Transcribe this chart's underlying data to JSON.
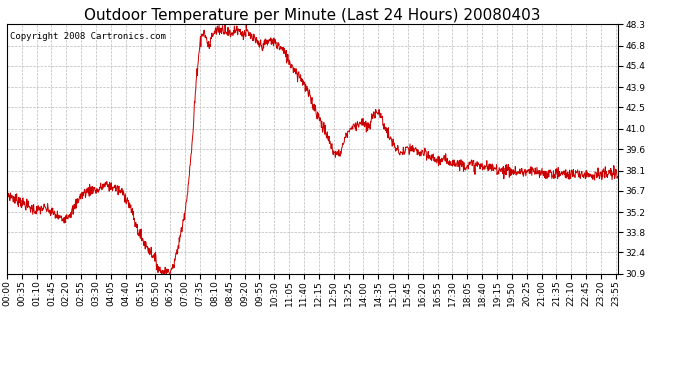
{
  "title": "Outdoor Temperature per Minute (Last 24 Hours) 20080403",
  "copyright_text": "Copyright 2008 Cartronics.com",
  "line_color": "#cc0000",
  "background_color": "#ffffff",
  "grid_color": "#bbbbbb",
  "ylim": [
    30.9,
    48.3
  ],
  "yticks": [
    30.9,
    32.4,
    33.8,
    35.2,
    36.7,
    38.1,
    39.6,
    41.0,
    42.5,
    43.9,
    45.4,
    46.8,
    48.3
  ],
  "title_fontsize": 11,
  "tick_fontsize": 6.5,
  "copyright_fontsize": 6.5,
  "keypoints": [
    [
      0,
      36.5
    ],
    [
      10,
      36.3
    ],
    [
      20,
      36.1
    ],
    [
      30,
      36.0
    ],
    [
      40,
      35.8
    ],
    [
      55,
      35.5
    ],
    [
      70,
      35.3
    ],
    [
      85,
      35.5
    ],
    [
      100,
      35.3
    ],
    [
      115,
      35.0
    ],
    [
      130,
      34.7
    ],
    [
      145,
      35.0
    ],
    [
      155,
      35.3
    ],
    [
      170,
      36.2
    ],
    [
      185,
      36.6
    ],
    [
      200,
      36.8
    ],
    [
      215,
      36.7
    ],
    [
      225,
      37.0
    ],
    [
      235,
      37.1
    ],
    [
      245,
      37.0
    ],
    [
      255,
      36.9
    ],
    [
      265,
      36.7
    ],
    [
      275,
      36.5
    ],
    [
      285,
      36.0
    ],
    [
      295,
      35.2
    ],
    [
      305,
      34.2
    ],
    [
      315,
      33.5
    ],
    [
      325,
      33.0
    ],
    [
      335,
      32.6
    ],
    [
      345,
      32.2
    ],
    [
      355,
      31.5
    ],
    [
      362,
      31.1
    ],
    [
      370,
      31.0
    ],
    [
      378,
      31.0
    ],
    [
      385,
      31.1
    ],
    [
      390,
      31.3
    ],
    [
      398,
      32.0
    ],
    [
      405,
      33.0
    ],
    [
      412,
      34.0
    ],
    [
      418,
      35.0
    ],
    [
      425,
      36.5
    ],
    [
      432,
      38.5
    ],
    [
      438,
      40.5
    ],
    [
      443,
      43.0
    ],
    [
      448,
      45.0
    ],
    [
      453,
      46.5
    ],
    [
      458,
      47.5
    ],
    [
      463,
      47.8
    ],
    [
      468,
      47.5
    ],
    [
      473,
      47.0
    ],
    [
      478,
      46.8
    ],
    [
      483,
      47.5
    ],
    [
      490,
      47.8
    ],
    [
      498,
      48.0
    ],
    [
      505,
      47.9
    ],
    [
      513,
      48.0
    ],
    [
      520,
      47.8
    ],
    [
      528,
      47.5
    ],
    [
      535,
      47.9
    ],
    [
      542,
      48.0
    ],
    [
      550,
      47.8
    ],
    [
      558,
      47.6
    ],
    [
      565,
      47.8
    ],
    [
      572,
      47.5
    ],
    [
      580,
      47.3
    ],
    [
      590,
      47.0
    ],
    [
      600,
      46.8
    ],
    [
      612,
      47.0
    ],
    [
      622,
      47.2
    ],
    [
      632,
      47.0
    ],
    [
      640,
      46.8
    ],
    [
      650,
      46.5
    ],
    [
      660,
      46.0
    ],
    [
      670,
      45.5
    ],
    [
      682,
      45.0
    ],
    [
      695,
      44.5
    ],
    [
      710,
      43.5
    ],
    [
      725,
      42.5
    ],
    [
      740,
      41.5
    ],
    [
      755,
      40.5
    ],
    [
      768,
      39.5
    ],
    [
      778,
      39.2
    ],
    [
      788,
      39.5
    ],
    [
      798,
      40.5
    ],
    [
      808,
      41.0
    ],
    [
      818,
      41.2
    ],
    [
      828,
      41.4
    ],
    [
      836,
      41.5
    ],
    [
      843,
      41.3
    ],
    [
      850,
      41.0
    ],
    [
      858,
      41.5
    ],
    [
      865,
      42.0
    ],
    [
      870,
      42.3
    ],
    [
      875,
      42.2
    ],
    [
      882,
      41.8
    ],
    [
      890,
      41.2
    ],
    [
      900,
      40.5
    ],
    [
      910,
      40.0
    ],
    [
      920,
      39.5
    ],
    [
      930,
      39.3
    ],
    [
      940,
      39.5
    ],
    [
      950,
      39.6
    ],
    [
      960,
      39.5
    ],
    [
      970,
      39.4
    ],
    [
      985,
      39.2
    ],
    [
      1000,
      39.0
    ],
    [
      1020,
      38.8
    ],
    [
      1040,
      38.8
    ],
    [
      1060,
      38.6
    ],
    [
      1080,
      38.5
    ],
    [
      1100,
      38.5
    ],
    [
      1120,
      38.4
    ],
    [
      1140,
      38.3
    ],
    [
      1160,
      38.2
    ],
    [
      1180,
      38.1
    ],
    [
      1200,
      38.0
    ],
    [
      1220,
      38.0
    ],
    [
      1240,
      38.0
    ],
    [
      1260,
      37.9
    ],
    [
      1280,
      37.9
    ],
    [
      1300,
      37.9
    ],
    [
      1320,
      37.85
    ],
    [
      1340,
      37.85
    ],
    [
      1360,
      37.85
    ],
    [
      1380,
      37.85
    ],
    [
      1400,
      37.85
    ],
    [
      1420,
      37.85
    ],
    [
      1439,
      37.85
    ]
  ]
}
